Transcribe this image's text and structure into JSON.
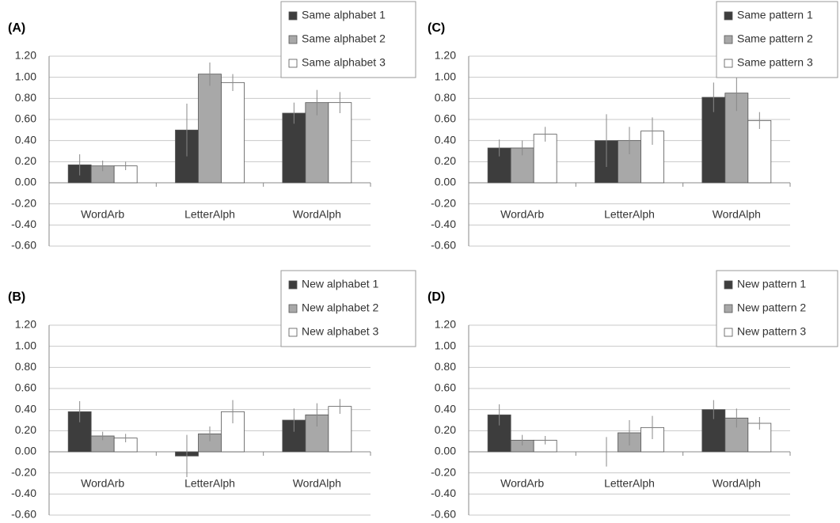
{
  "chart_data": [
    {
      "type": "bar",
      "title": "(A)",
      "categories": [
        "WordArb",
        "LetterAlph",
        "WordAlph"
      ],
      "series": [
        {
          "name": "Same alphabet 1",
          "color": "#3d3d3d",
          "values": [
            0.17,
            0.5,
            0.66
          ],
          "errors": [
            0.1,
            0.25,
            0.1
          ]
        },
        {
          "name": "Same alphabet 2",
          "color": "#a8a8a8",
          "values": [
            0.16,
            1.03,
            0.76
          ],
          "errors": [
            0.05,
            0.11,
            0.12
          ]
        },
        {
          "name": "Same alphabet 3",
          "color": "#ffffff",
          "values": [
            0.16,
            0.95,
            0.76
          ],
          "errors": [
            0.04,
            0.08,
            0.1
          ]
        }
      ],
      "ylim": [
        -0.6,
        1.2
      ],
      "yticks": [
        {
          "value": -0.6,
          "label": "-0.60"
        },
        {
          "value": -0.4,
          "label": "-0.40"
        },
        {
          "value": -0.2,
          "label": "-0.20"
        },
        {
          "value": 0,
          "label": "0.00"
        },
        {
          "value": 0.2,
          "label": "0.20"
        },
        {
          "value": 0.4,
          "label": "0.40"
        },
        {
          "value": 0.6,
          "label": "0.60"
        },
        {
          "value": 0.8,
          "label": "0.80"
        },
        {
          "value": 1.0,
          "label": "1.00"
        },
        {
          "value": 1.2,
          "label": "1.20"
        }
      ],
      "grid": true
    },
    {
      "type": "bar",
      "title": "(B)",
      "categories": [
        "WordArb",
        "LetterAlph",
        "WordAlph"
      ],
      "series": [
        {
          "name": "New alphabet 1",
          "color": "#3d3d3d",
          "values": [
            0.38,
            -0.04,
            0.3
          ],
          "errors": [
            0.1,
            0.2,
            0.11
          ]
        },
        {
          "name": "New alphabet 2",
          "color": "#a8a8a8",
          "values": [
            0.15,
            0.17,
            0.35
          ],
          "errors": [
            0.04,
            0.07,
            0.11
          ]
        },
        {
          "name": "New alphabet 3",
          "color": "#ffffff",
          "values": [
            0.13,
            0.38,
            0.43
          ],
          "errors": [
            0.04,
            0.11,
            0.07
          ]
        }
      ],
      "ylim": [
        -0.6,
        1.2
      ],
      "yticks": [
        {
          "value": -0.6,
          "label": "-0.60"
        },
        {
          "value": -0.4,
          "label": "-0.40"
        },
        {
          "value": -0.2,
          "label": "-0.20"
        },
        {
          "value": 0,
          "label": "0.00"
        },
        {
          "value": 0.2,
          "label": "0.20"
        },
        {
          "value": 0.4,
          "label": "0.40"
        },
        {
          "value": 0.6,
          "label": "0.60"
        },
        {
          "value": 0.8,
          "label": "0.80"
        },
        {
          "value": 1.0,
          "label": "1.00"
        },
        {
          "value": 1.2,
          "label": "1.20"
        }
      ],
      "grid": true
    },
    {
      "type": "bar",
      "title": "(C)",
      "categories": [
        "WordArb",
        "LetterAlph",
        "WordAlph"
      ],
      "series": [
        {
          "name": "Same pattern 1",
          "color": "#3d3d3d",
          "values": [
            0.33,
            0.4,
            0.81
          ],
          "errors": [
            0.08,
            0.25,
            0.14
          ]
        },
        {
          "name": "Same pattern 2",
          "color": "#a8a8a8",
          "values": [
            0.33,
            0.4,
            0.85
          ],
          "errors": [
            0.07,
            0.13,
            0.17
          ]
        },
        {
          "name": "Same pattern 3",
          "color": "#ffffff",
          "values": [
            0.46,
            0.49,
            0.59
          ],
          "errors": [
            0.07,
            0.13,
            0.08
          ]
        }
      ],
      "ylim": [
        -0.6,
        1.2
      ],
      "yticks": [
        {
          "value": -0.6,
          "label": "-0.60"
        },
        {
          "value": -0.4,
          "label": "-0.40"
        },
        {
          "value": -0.2,
          "label": "-0.20"
        },
        {
          "value": 0,
          "label": "0.00"
        },
        {
          "value": 0.2,
          "label": "0.20"
        },
        {
          "value": 0.4,
          "label": "0.40"
        },
        {
          "value": 0.6,
          "label": "0.60"
        },
        {
          "value": 0.8,
          "label": "0.80"
        },
        {
          "value": 1.0,
          "label": "1.00"
        },
        {
          "value": 1.2,
          "label": "1.20"
        }
      ],
      "grid": true
    },
    {
      "type": "bar",
      "title": "(D)",
      "categories": [
        "WordArb",
        "LetterAlph",
        "WordAlph"
      ],
      "series": [
        {
          "name": "New pattern 1",
          "color": "#3d3d3d",
          "values": [
            0.35,
            0.0,
            0.4
          ],
          "errors": [
            0.1,
            0.14,
            0.09
          ]
        },
        {
          "name": "New pattern 2",
          "color": "#a8a8a8",
          "values": [
            0.11,
            0.18,
            0.32
          ],
          "errors": [
            0.05,
            0.12,
            0.09
          ]
        },
        {
          "name": "New pattern 3",
          "color": "#ffffff",
          "values": [
            0.11,
            0.23,
            0.27
          ],
          "errors": [
            0.04,
            0.11,
            0.06
          ]
        }
      ],
      "ylim": [
        -0.6,
        1.2
      ],
      "yticks": [
        {
          "value": -0.6,
          "label": "-0.60"
        },
        {
          "value": -0.4,
          "label": "-0.40"
        },
        {
          "value": -0.2,
          "label": "-0.20"
        },
        {
          "value": 0,
          "label": "0.00"
        },
        {
          "value": 0.2,
          "label": "0.20"
        },
        {
          "value": 0.4,
          "label": "0.40"
        },
        {
          "value": 0.6,
          "label": "0.60"
        },
        {
          "value": 0.8,
          "label": "0.80"
        },
        {
          "value": 1.0,
          "label": "1.00"
        },
        {
          "value": 1.2,
          "label": "1.20"
        }
      ],
      "grid": true
    }
  ]
}
